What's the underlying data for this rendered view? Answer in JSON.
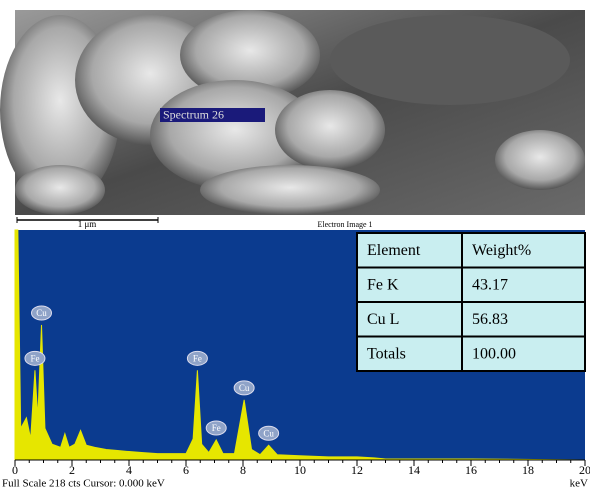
{
  "image": {
    "label": "Spectrum 26",
    "scale_bar": "1 μm",
    "caption": "Electron Image 1"
  },
  "chart_data": {
    "type": "area",
    "color": "#e6e600",
    "background": "#0b3b8f",
    "x": [
      0,
      0.1,
      0.2,
      0.4,
      0.55,
      0.7,
      0.8,
      0.93,
      1.05,
      1.3,
      1.6,
      1.75,
      1.9,
      2.1,
      2.3,
      2.5,
      2.8,
      3.2,
      3.6,
      4.0,
      4.5,
      5.0,
      5.5,
      6.0,
      6.25,
      6.4,
      6.55,
      6.8,
      7.06,
      7.3,
      7.7,
      8.04,
      8.3,
      8.6,
      8.9,
      9.2,
      10,
      11,
      12,
      12.6,
      13,
      16,
      20
    ],
    "values": [
      218,
      218,
      30,
      40,
      20,
      85,
      40,
      128,
      30,
      15,
      12,
      25,
      12,
      15,
      28,
      14,
      12,
      10,
      9,
      8,
      7,
      6,
      6,
      6,
      20,
      85,
      15,
      7,
      19,
      6,
      6,
      57,
      10,
      5,
      14,
      5,
      4,
      3,
      3,
      2,
      1,
      1,
      0
    ],
    "xlim": [
      0,
      20
    ],
    "ylim": [
      0,
      218
    ],
    "xticks": [
      0,
      2,
      4,
      6,
      8,
      10,
      12,
      14,
      16,
      18,
      20
    ],
    "xlabel": "keV",
    "footer": "Full Scale 218 cts Cursor: 0.000 keV",
    "peak_labels": [
      {
        "label": "Fe",
        "x": 0.7
      },
      {
        "label": "Cu",
        "x": 0.93
      },
      {
        "label": "Fe",
        "x": 6.4
      },
      {
        "label": "Fe",
        "x": 7.06
      },
      {
        "label": "Cu",
        "x": 8.04
      },
      {
        "label": "Cu",
        "x": 8.9
      }
    ]
  },
  "table": {
    "rows": [
      [
        "Element",
        "Weight%"
      ],
      [
        "Fe K",
        "43.17"
      ],
      [
        "Cu L",
        "56.83"
      ],
      [
        "Totals",
        "100.00"
      ]
    ]
  }
}
